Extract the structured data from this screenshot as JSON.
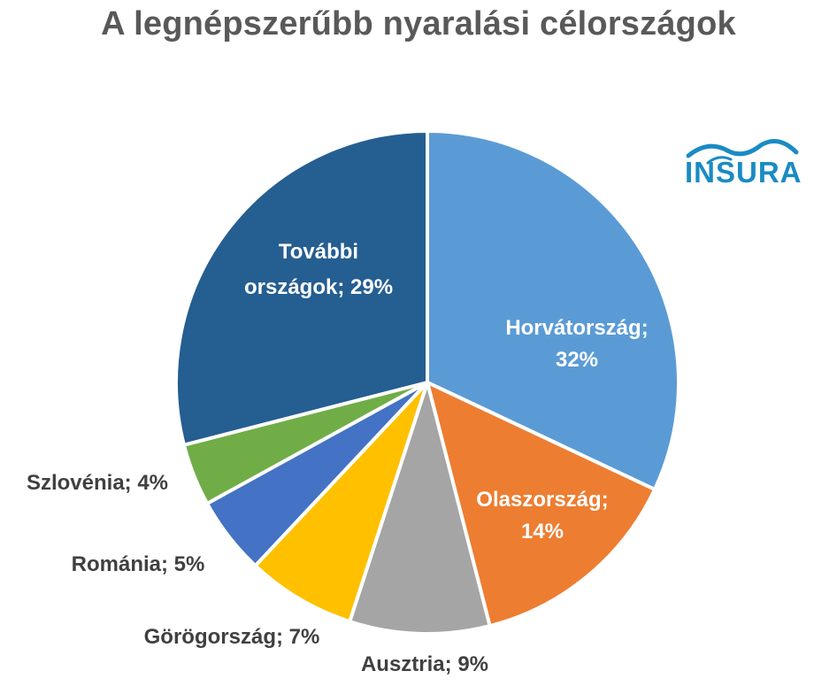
{
  "chart_data": {
    "type": "pie",
    "title": "A legnépszerűbb nyaralási célországok",
    "slices": [
      {
        "label": "Horvátország",
        "value": 32,
        "label_text": [
          "Horvátország;",
          "32%"
        ],
        "color": "#5b9bd5",
        "label_color": "#ffffff"
      },
      {
        "label": "Olaszország",
        "value": 14,
        "label_text": [
          "Olaszország;",
          "14%"
        ],
        "color": "#ed7d31",
        "label_color": "#ffffff"
      },
      {
        "label": "Ausztria",
        "value": 9,
        "label_text": [
          "Ausztria; 9%"
        ],
        "color": "#a5a5a5",
        "label_color": "#404040"
      },
      {
        "label": "Görögország",
        "value": 7,
        "label_text": [
          "Görögország; 7%"
        ],
        "color": "#ffc000",
        "label_color": "#404040"
      },
      {
        "label": "Románia",
        "value": 5,
        "label_text": [
          "Románia; 5%"
        ],
        "color": "#4472c4",
        "label_color": "#404040"
      },
      {
        "label": "Szlovénia",
        "value": 4,
        "label_text": [
          "Szlovénia; 4%"
        ],
        "color": "#70ad47",
        "label_color": "#404040"
      },
      {
        "label": "További országok",
        "value": 29,
        "label_text": [
          "További",
          "országok; 29%"
        ],
        "color": "#255e91",
        "label_color": "#ffffff"
      }
    ]
  },
  "logo": {
    "text": "INSURA",
    "color": "#1a8bc3"
  }
}
